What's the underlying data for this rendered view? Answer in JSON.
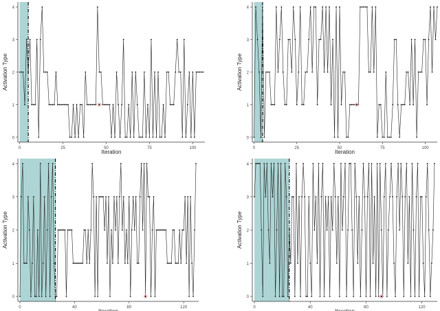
{
  "chart_data": [
    {
      "type": "line",
      "xlabel": "Iteration",
      "ylabel": "Activation Type",
      "xlim": [
        -1,
        107
      ],
      "ylim": [
        -0.15,
        4.15
      ],
      "xticks": [
        0,
        25,
        50,
        75,
        100
      ],
      "yticks": [
        0,
        1,
        2,
        3,
        4
      ],
      "shaded_region": [
        0,
        5
      ],
      "vline": 5,
      "highlight": {
        "x": 46,
        "y": 1
      },
      "series": [
        {
          "values": [
            2,
            2,
            2,
            1,
            3,
            2,
            3,
            1,
            1,
            1,
            3,
            0,
            3,
            4,
            2,
            2,
            2,
            1,
            1,
            1,
            1,
            2,
            1,
            1,
            1,
            1,
            1,
            1,
            1,
            0,
            0,
            1,
            0,
            1,
            0,
            1,
            1,
            0,
            2,
            1,
            1,
            1,
            1,
            1,
            1,
            4,
            2,
            2,
            1,
            1,
            1,
            1,
            1,
            0,
            1,
            0,
            2,
            1,
            0,
            1,
            3,
            0,
            0,
            1,
            0,
            2,
            0,
            2,
            1,
            0,
            0,
            0,
            2,
            0,
            1,
            0,
            3,
            0,
            2,
            0,
            2,
            0,
            0,
            1,
            0,
            2,
            2,
            1,
            1,
            1,
            2,
            3,
            2,
            2,
            0,
            3,
            0,
            1,
            2,
            0,
            2,
            0,
            2,
            2,
            2,
            2,
            2
          ]
        }
      ]
    },
    {
      "type": "line",
      "xlabel": "Iteration",
      "ylabel": "Activation Type",
      "xlim": [
        -1,
        107
      ],
      "ylim": [
        -0.15,
        4.15
      ],
      "xticks": [
        0,
        25,
        50,
        75,
        100
      ],
      "yticks": [
        0,
        1,
        2,
        3,
        4
      ],
      "shaded_region": [
        0,
        5
      ],
      "vline": 5,
      "highlight": {
        "x": 60,
        "y": 1
      },
      "series": [
        {
          "values": [
            0,
            4,
            3,
            2,
            0,
            4,
            0,
            2,
            2,
            2,
            1,
            1,
            1,
            4,
            2,
            3,
            4,
            2,
            1,
            1,
            3,
            3,
            2,
            4,
            3,
            1,
            2,
            4,
            1,
            1,
            2,
            2,
            3,
            4,
            2,
            4,
            4,
            1,
            3,
            3,
            4,
            2,
            4,
            2,
            4,
            1,
            3,
            0,
            4,
            0,
            4,
            1,
            2,
            2,
            0,
            0,
            1,
            1,
            1,
            1,
            1,
            1,
            4,
            4,
            4,
            4,
            4,
            2,
            2,
            4,
            2,
            4,
            0,
            1,
            1,
            0,
            0,
            2,
            0,
            0,
            0,
            1,
            3,
            3,
            1,
            0,
            1,
            1,
            1,
            2,
            2,
            1,
            3,
            1,
            3,
            0,
            2,
            2,
            2,
            3,
            3,
            1,
            3,
            4,
            2,
            4,
            3,
            4
          ]
        }
      ]
    },
    {
      "type": "line",
      "xlabel": "Iteration",
      "ylabel": "Activation Type",
      "xlim": [
        -1.5,
        131
      ],
      "ylim": [
        -0.15,
        4.15
      ],
      "xticks": [
        0,
        40,
        80,
        120
      ],
      "yticks": [
        0,
        1,
        2,
        3,
        4
      ],
      "shaded_region": [
        0,
        26
      ],
      "vline": 26,
      "highlight": {
        "x": 92,
        "y": 0
      },
      "series": [
        {
          "values": [
            0,
            3,
            4,
            1,
            1,
            1,
            3,
            2,
            0,
            1,
            3,
            0,
            0,
            2,
            0,
            4,
            0,
            1,
            3,
            0,
            2,
            4,
            0,
            3,
            4,
            1,
            0,
            0,
            2,
            2,
            2,
            2,
            2,
            2,
            0,
            2,
            2,
            2,
            2,
            1,
            1,
            1,
            1,
            1,
            1,
            1,
            1,
            2,
            2,
            1,
            2,
            1,
            2,
            4,
            3,
            0,
            3,
            0,
            3,
            3,
            3,
            3,
            2,
            3,
            1,
            3,
            0,
            2,
            1,
            3,
            2,
            3,
            1,
            3,
            4,
            2,
            3,
            1,
            2,
            1,
            3,
            0,
            2,
            3,
            2,
            3,
            1,
            1,
            3,
            4,
            2,
            4,
            0,
            4,
            3,
            3,
            0,
            2,
            3,
            0,
            2,
            2,
            2,
            2,
            2,
            2,
            2,
            2,
            1,
            1,
            1,
            1,
            2,
            2,
            1,
            1,
            1,
            2,
            1,
            2,
            2,
            3,
            1,
            3,
            0,
            3,
            1,
            0,
            2,
            4
          ]
        }
      ]
    },
    {
      "type": "line",
      "xlabel": "Iteration",
      "ylabel": "Activation Type",
      "xlim": [
        -1.5,
        131
      ],
      "ylim": [
        -0.15,
        4.15
      ],
      "xticks": [
        0,
        40,
        80,
        120
      ],
      "yticks": [
        0,
        1,
        2,
        3,
        4
      ],
      "shaded_region": [
        0,
        25
      ],
      "vline": 25,
      "highlight": {
        "x": 91,
        "y": 0
      },
      "series": [
        {
          "values": [
            3,
            4,
            4,
            4,
            4,
            2,
            0,
            4,
            3,
            4,
            2,
            1,
            4,
            3,
            4,
            0,
            2,
            4,
            0,
            4,
            0,
            0,
            4,
            3,
            0,
            2,
            1,
            3,
            3,
            0,
            4,
            1,
            3,
            0,
            3,
            4,
            3,
            0,
            0,
            3,
            1,
            0,
            4,
            2,
            3,
            1,
            4,
            0,
            3,
            4,
            0,
            3,
            2,
            3,
            0,
            3,
            2,
            4,
            3,
            1,
            3,
            0,
            4,
            2,
            3,
            4,
            0,
            2,
            4,
            4,
            2,
            0,
            4,
            3,
            1,
            3,
            0,
            2,
            4,
            3,
            0,
            3,
            4,
            0,
            4,
            1,
            3,
            0,
            4,
            0,
            4,
            2,
            0,
            3,
            4,
            0,
            2,
            3,
            4,
            3,
            1,
            0,
            3,
            4,
            2,
            4,
            3,
            0,
            3,
            4,
            1,
            3,
            0,
            4,
            2,
            0,
            3,
            4,
            0,
            3,
            3,
            1,
            0,
            3,
            4,
            2,
            0,
            1,
            2,
            4
          ]
        }
      ]
    }
  ]
}
